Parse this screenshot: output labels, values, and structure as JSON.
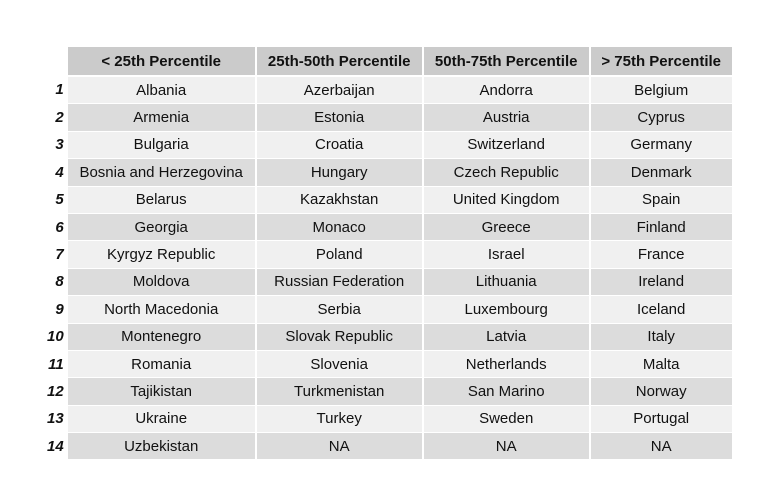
{
  "table": {
    "columns": [
      "< 25th Percentile",
      "25th-50th Percentile",
      "50th-75th Percentile",
      "> 75th Percentile"
    ],
    "rows": [
      {
        "index": "1",
        "cells": [
          "Albania",
          "Azerbaijan",
          "Andorra",
          "Belgium"
        ]
      },
      {
        "index": "2",
        "cells": [
          "Armenia",
          "Estonia",
          "Austria",
          "Cyprus"
        ]
      },
      {
        "index": "3",
        "cells": [
          "Bulgaria",
          "Croatia",
          "Switzerland",
          "Germany"
        ]
      },
      {
        "index": "4",
        "cells": [
          "Bosnia and Herzegovina",
          "Hungary",
          "Czech Republic",
          "Denmark"
        ]
      },
      {
        "index": "5",
        "cells": [
          "Belarus",
          "Kazakhstan",
          "United Kingdom",
          "Spain"
        ]
      },
      {
        "index": "6",
        "cells": [
          "Georgia",
          "Monaco",
          "Greece",
          "Finland"
        ]
      },
      {
        "index": "7",
        "cells": [
          "Kyrgyz Republic",
          "Poland",
          "Israel",
          "France"
        ]
      },
      {
        "index": "8",
        "cells": [
          "Moldova",
          "Russian Federation",
          "Lithuania",
          "Ireland"
        ]
      },
      {
        "index": "9",
        "cells": [
          "North Macedonia",
          "Serbia",
          "Luxembourg",
          "Iceland"
        ]
      },
      {
        "index": "10",
        "cells": [
          "Montenegro",
          "Slovak Republic",
          "Latvia",
          "Italy"
        ]
      },
      {
        "index": "11",
        "cells": [
          "Romania",
          "Slovenia",
          "Netherlands",
          "Malta"
        ]
      },
      {
        "index": "12",
        "cells": [
          "Tajikistan",
          "Turkmenistan",
          "San Marino",
          "Norway"
        ]
      },
      {
        "index": "13",
        "cells": [
          "Ukraine",
          "Turkey",
          "Sweden",
          "Portugal"
        ]
      },
      {
        "index": "14",
        "cells": [
          "Uzbekistan",
          "NA",
          "NA",
          "NA"
        ]
      }
    ]
  },
  "colors": {
    "header_bg": "#cbcbcb",
    "row_light": "#f0f0f0",
    "row_dark": "#dcdcdc"
  }
}
